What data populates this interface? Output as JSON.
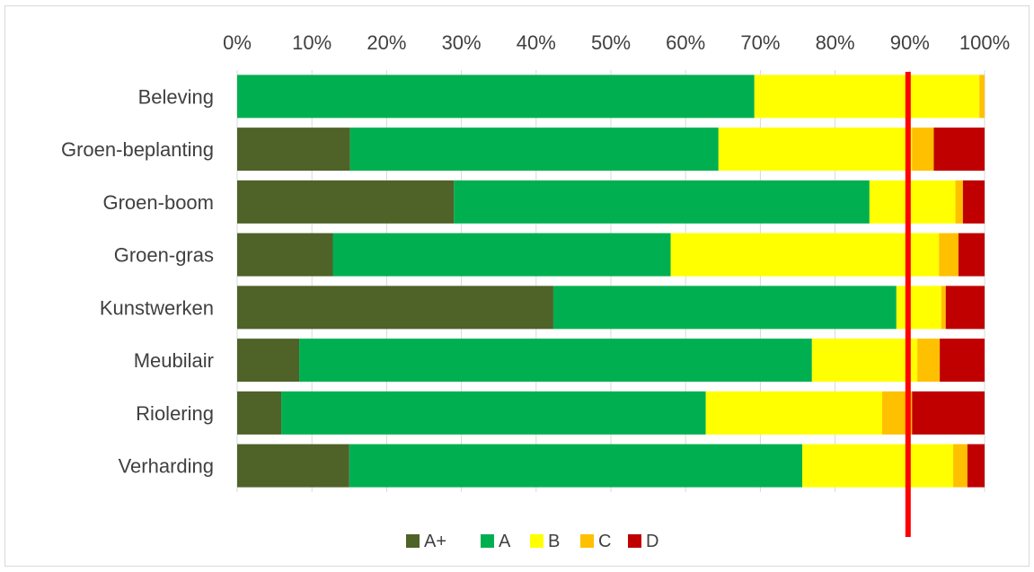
{
  "chart_data": {
    "type": "bar",
    "orientation": "horizontal",
    "stacked": "percent",
    "title": "",
    "xlabel": "",
    "ylabel": "",
    "xlim": [
      0,
      100
    ],
    "x_ticks": [
      "0%",
      "10%",
      "20%",
      "30%",
      "40%",
      "50%",
      "60%",
      "70%",
      "80%",
      "90%",
      "100%"
    ],
    "x_axis_position": "top",
    "grid": true,
    "legend_position": "bottom",
    "categories": [
      "Beleving",
      "Groen-beplanting",
      "Groen-boom",
      "Groen-gras",
      "Kunstwerken",
      "Meubilair",
      "Riolering",
      "Verharding"
    ],
    "series": [
      {
        "name": "A+",
        "color": "#4f6228",
        "values": [
          0,
          15.1,
          29.0,
          12.8,
          42.3,
          8.3,
          5.9,
          15.0
        ]
      },
      {
        "name": "A",
        "color": "#00b050",
        "values": [
          69.2,
          49.3,
          55.6,
          45.2,
          45.9,
          68.6,
          56.8,
          60.6
        ]
      },
      {
        "name": "B",
        "color": "#ffff00",
        "values": [
          30.1,
          25.9,
          11.5,
          35.9,
          6.0,
          14.1,
          23.6,
          20.2
        ]
      },
      {
        "name": "C",
        "color": "#ffc000",
        "values": [
          0.7,
          2.9,
          1.0,
          2.6,
          0.6,
          3.0,
          4.0,
          1.9
        ]
      },
      {
        "name": "D",
        "color": "#c00000",
        "values": [
          0,
          6.8,
          2.9,
          3.5,
          5.2,
          6.0,
          9.7,
          2.3
        ]
      }
    ],
    "reference_line": {
      "value": 90,
      "color": "#ff0000"
    }
  }
}
